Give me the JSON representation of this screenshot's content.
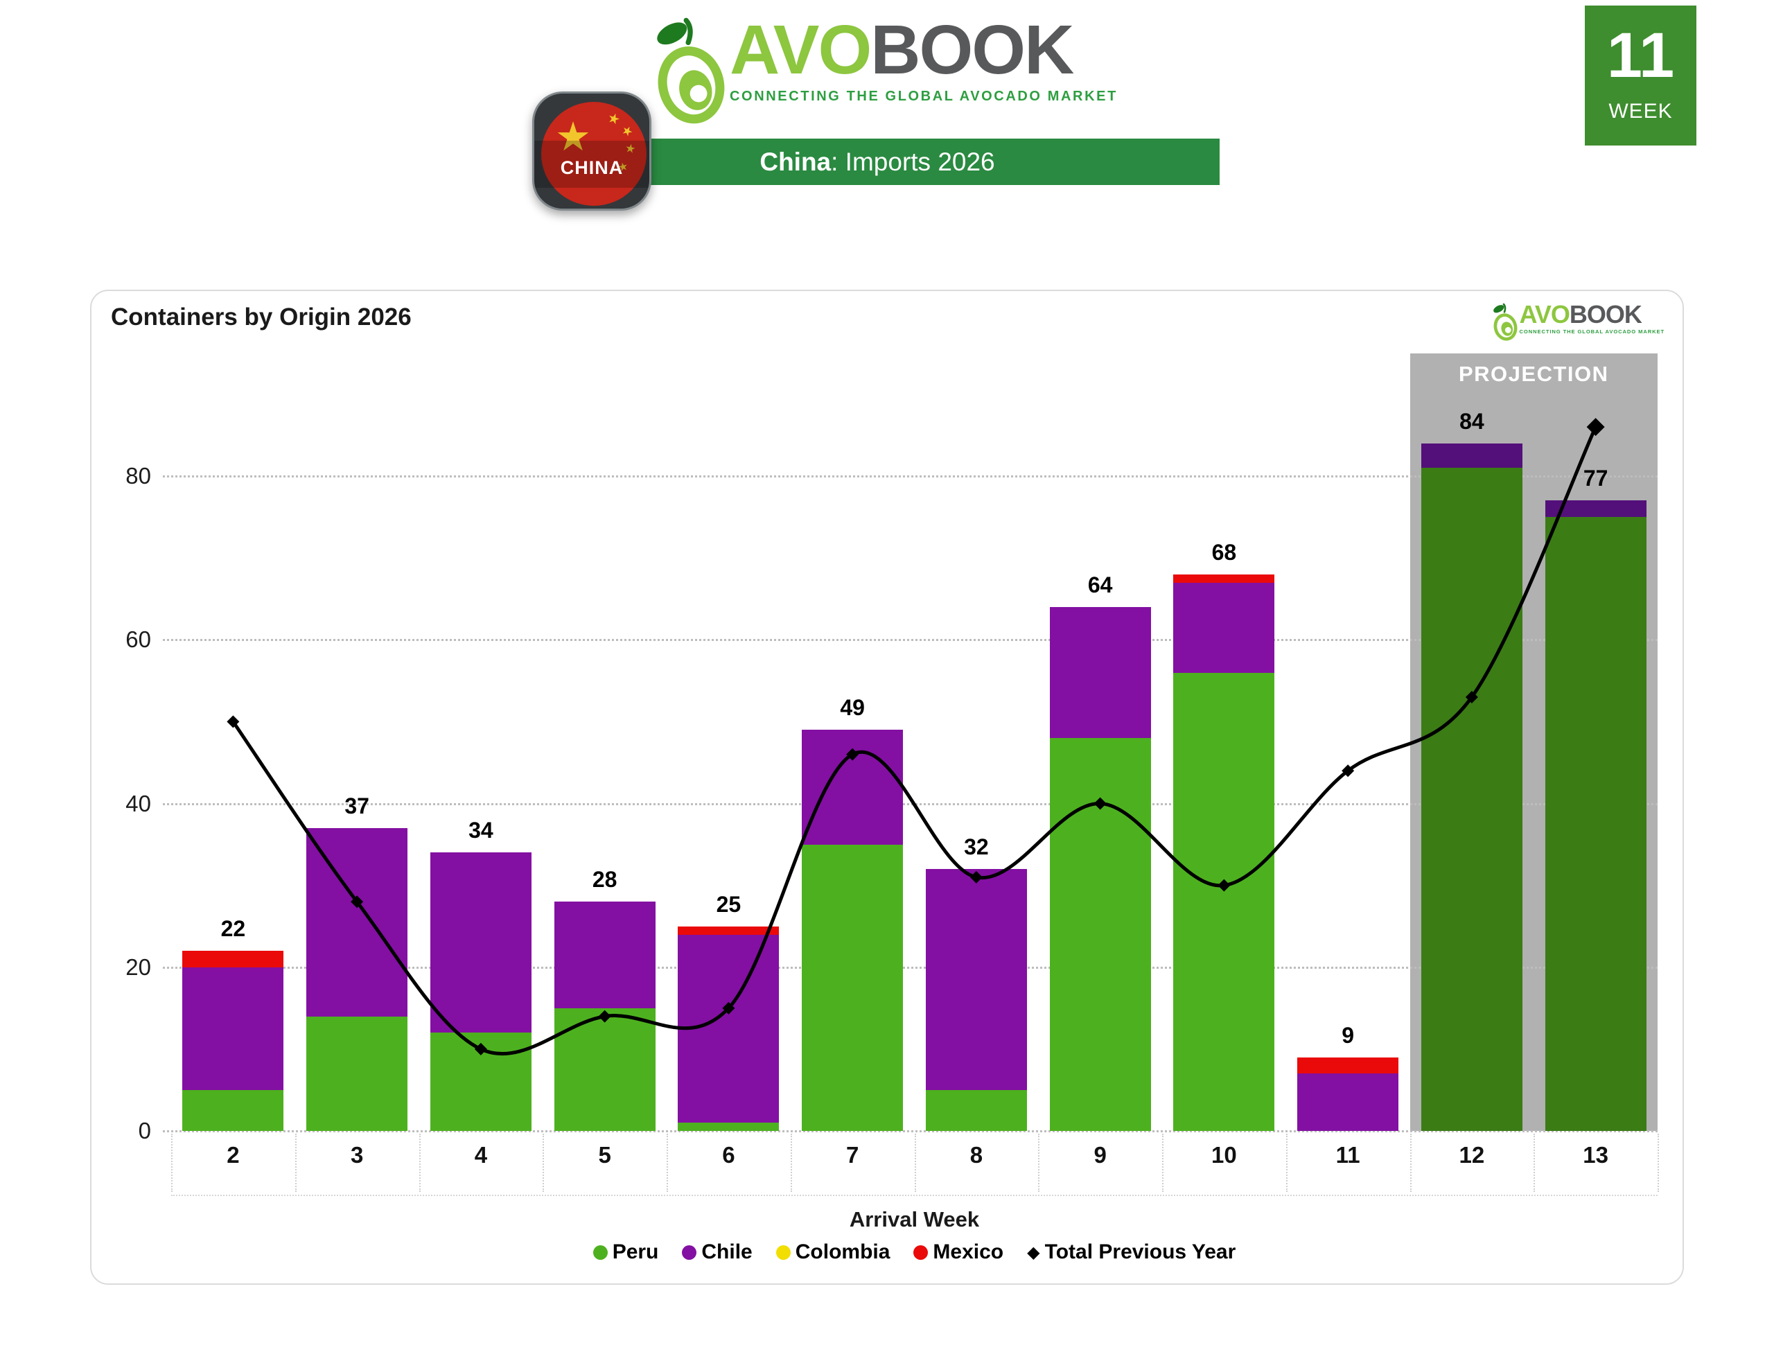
{
  "brand": {
    "name_primary": "AVO",
    "name_secondary": "BOOK",
    "tagline": "CONNECTING THE GLOBAL AVOCADO MARKET"
  },
  "header": {
    "flag_label": "CHINA",
    "banner_country": "China",
    "banner_rest": ": Imports 2026",
    "week_badge_number": "11",
    "week_badge_label": "WEEK"
  },
  "card": {
    "title": "Containers by Origin 2026"
  },
  "chart_data": {
    "type": "bar",
    "subtype": "stacked-bars-with-line-overlay",
    "title": "Containers by Origin 2026",
    "xlabel": "Arrival Week",
    "ylabel": "",
    "categories": [
      2,
      3,
      4,
      5,
      6,
      7,
      8,
      9,
      10,
      11,
      12,
      13
    ],
    "series": [
      {
        "name": "Peru",
        "type": "bar",
        "color": "#4DB11F",
        "projection_color": "#3B7C15",
        "values": [
          5,
          14,
          12,
          15,
          1,
          35,
          5,
          48,
          56,
          0,
          81,
          75
        ]
      },
      {
        "name": "Chile",
        "type": "bar",
        "color": "#8310A2",
        "projection_color": "#53107A",
        "values": [
          15,
          23,
          22,
          13,
          23,
          14,
          27,
          16,
          11,
          7,
          3,
          2
        ]
      },
      {
        "name": "Colombia",
        "type": "bar",
        "color": "#F2DE00",
        "projection_color": "#F2DE00",
        "values": [
          0,
          0,
          0,
          0,
          0,
          0,
          0,
          0,
          0,
          0,
          0,
          0
        ]
      },
      {
        "name": "Mexico",
        "type": "bar",
        "color": "#EA0A0A",
        "projection_color": "#EA0A0A",
        "values": [
          2,
          0,
          0,
          0,
          1,
          0,
          0,
          0,
          1,
          2,
          0,
          0
        ]
      },
      {
        "name": "Total Previous Year",
        "type": "line",
        "color": "#000000",
        "values": [
          50,
          28,
          10,
          14,
          15,
          46,
          31,
          40,
          30,
          44,
          53,
          86
        ]
      }
    ],
    "bar_totals": [
      22,
      37,
      34,
      28,
      25,
      49,
      32,
      64,
      68,
      9,
      84,
      77
    ],
    "projection": {
      "label": "PROJECTION",
      "categories": [
        12,
        13
      ],
      "background": "#B1B1B1"
    },
    "ylim": [
      0,
      95
    ],
    "yticks": [
      0,
      20,
      40,
      60,
      80
    ],
    "grid": "horizontal dotted",
    "legend_position": "bottom"
  }
}
